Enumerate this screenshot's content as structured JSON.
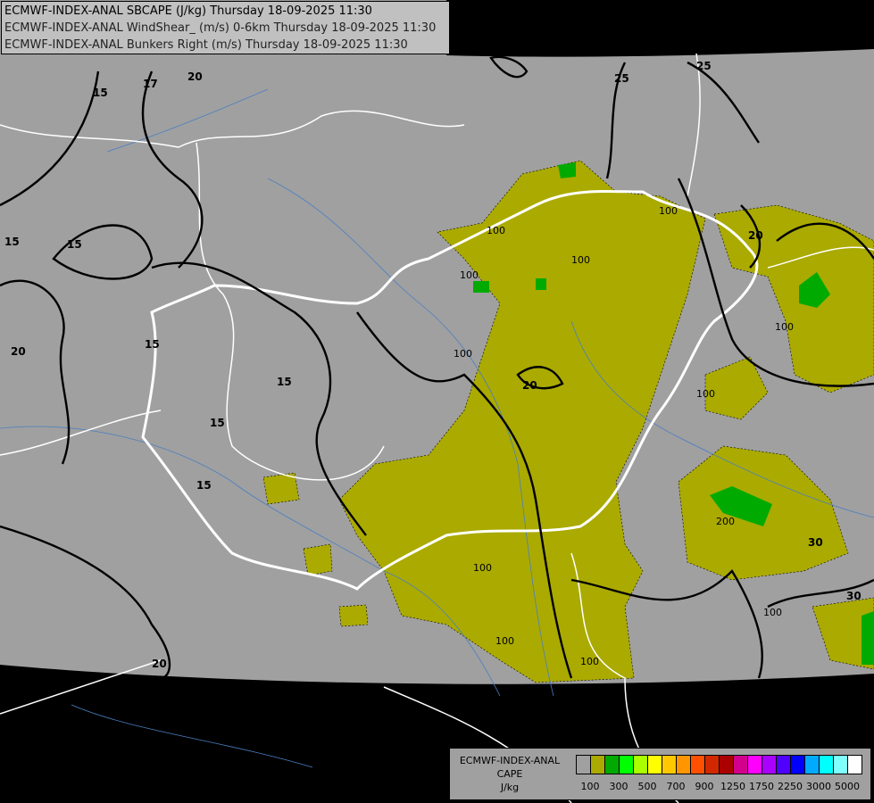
{
  "header": {
    "lines": [
      "ECMWF-INDEX-ANAL SBCAPE (J/kg) Thursday 18-09-2025 11:30",
      "ECMWF-INDEX-ANAL WindShear_ (m/s) 0-6km Thursday 18-09-2025 11:30",
      "ECMWF-INDEX-ANAL Bunkers Right (m/s) Thursday 18-09-2025 11:30"
    ]
  },
  "legend": {
    "model": "ECMWF-INDEX-ANAL",
    "field": "CAPE",
    "unit": "J/kg",
    "colors": [
      "#a0a0a0",
      "#aaaa00",
      "#00aa00",
      "#00ff00",
      "#aaff00",
      "#ffff00",
      "#ffc800",
      "#ff9600",
      "#ff5000",
      "#d22800",
      "#aa0000",
      "#d2008c",
      "#ff00ff",
      "#aa00ff",
      "#5000ff",
      "#0000ff",
      "#00aaff",
      "#00ffff",
      "#80ffff",
      "#ffffff"
    ],
    "ticks": [
      "100",
      "300",
      "500",
      "700",
      "900",
      "1250",
      "1750",
      "2250",
      "3000",
      "5000"
    ]
  },
  "map": {
    "colors": {
      "background": "#000000",
      "domain": "#a0a0a0",
      "cape_100": "#aaaa00",
      "cape_300": "#00aa00",
      "borders": "#ffffff",
      "rivers": "#4a7fc0",
      "contours": "#000000"
    },
    "shear_labels": [
      "15",
      "17",
      "20",
      "15",
      "15",
      "15",
      "20",
      "15",
      "15",
      "15",
      "20",
      "20",
      "25",
      "25",
      "30",
      "30",
      "20"
    ],
    "cape_labels": [
      "100",
      "100",
      "100",
      "100",
      "100",
      "100",
      "100",
      "200",
      "100",
      "100",
      "100",
      "100"
    ]
  }
}
